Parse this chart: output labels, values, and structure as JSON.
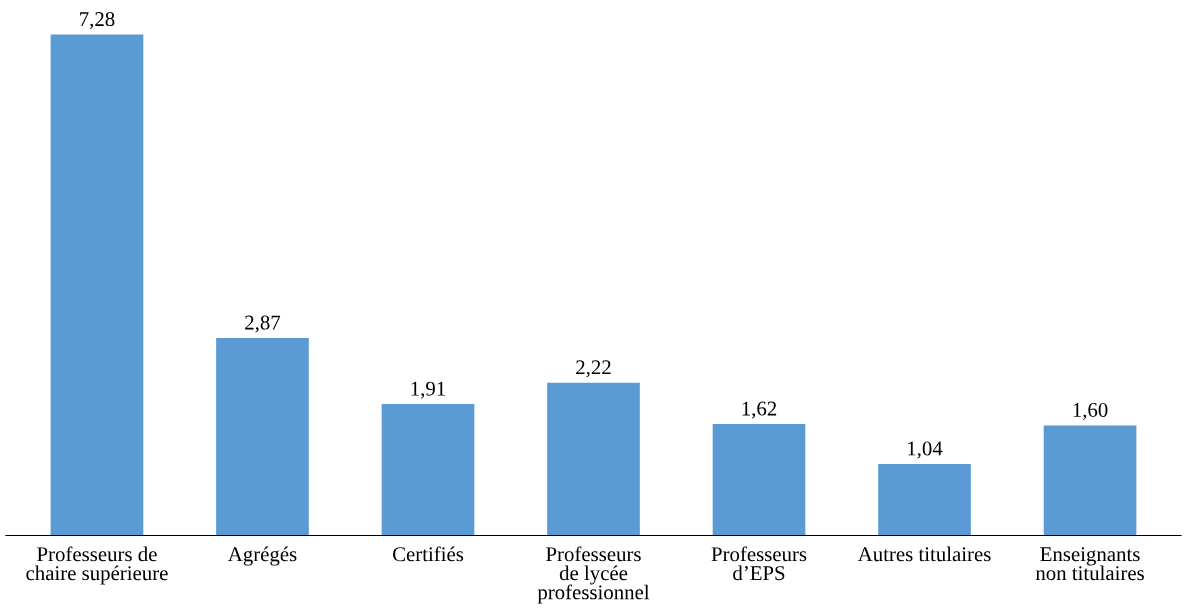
{
  "chart_data": {
    "type": "bar",
    "categories": [
      "Professeurs de\nchaire supérieure",
      "Agrégés",
      "Certifiés",
      "Professeurs\nde lycée\nprofessionnel",
      "Professeurs\nd’EPS",
      "Autres titulaires",
      "Enseignants\nnon titulaires"
    ],
    "values": [
      7.28,
      2.87,
      1.91,
      2.22,
      1.62,
      1.04,
      1.6
    ],
    "value_labels": [
      "7,28",
      "2,87",
      "1,91",
      "2,22",
      "1,62",
      "1,04",
      "1,60"
    ],
    "color": "#5b9bd5",
    "tick_labels": "x",
    "grid": false,
    "legend": false
  }
}
